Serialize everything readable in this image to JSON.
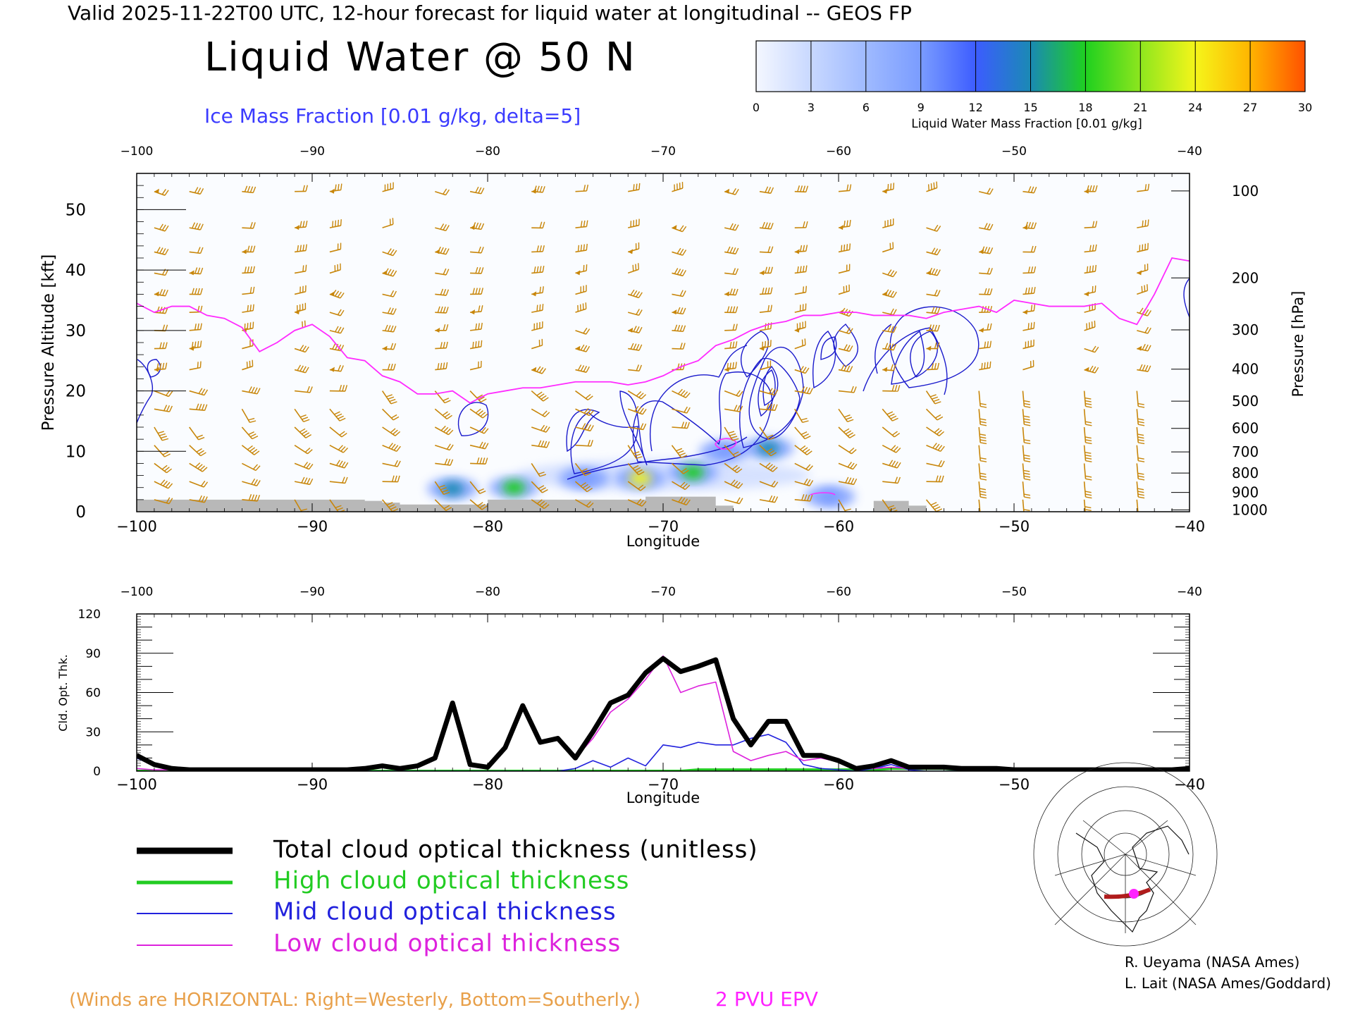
{
  "header": {
    "valid_line": "Valid 2025-11-22T00 UTC, 12-hour forecast for liquid water at longitudinal -- GEOS FP",
    "main_title": "Liquid Water @ 50 N",
    "subtitle": "Ice Mass Fraction [0.01 g/kg, delta=5]"
  },
  "colorbar": {
    "ticks": [
      "0",
      "3",
      "6",
      "9",
      "12",
      "15",
      "18",
      "21",
      "24",
      "27",
      "30"
    ],
    "label": "Liquid Water Mass Fraction [0.01 g/kg]",
    "colors": [
      "#f4f7ff",
      "#c8d8ff",
      "#9fbaff",
      "#7a9cff",
      "#3c5cff",
      "#1a8ab4",
      "#1fd01f",
      "#8ee61e",
      "#f5f51a",
      "#ffb400",
      "#ff5000"
    ]
  },
  "colors": {
    "tropopause": "#ff2bff",
    "ice_contour": "#1a1acc",
    "wind_barb": "#c8860a",
    "terrain": "#b8b8b8",
    "high_cloud": "#22cc22",
    "mid_cloud": "#2222dd",
    "low_cloud": "#dd22dd",
    "total_cloud": "#000000",
    "winds_note": "#e8a04a",
    "pvu": "#ff22ff",
    "subtitle": "#3a3aff"
  },
  "chart_data": [
    {
      "type": "heatmap",
      "title": "Liquid Water @ 50 N",
      "xlabel": "Longitude",
      "ylabel": "Pressure Altitude [kft]",
      "ylabel_right": "Pressure [hPa]",
      "xlim": [
        -100,
        -40
      ],
      "ylim": [
        0,
        56
      ],
      "x_ticks": [
        "-100",
        "-90",
        "-80",
        "-70",
        "-60",
        "-50",
        "-40"
      ],
      "y_ticks": [
        "0",
        "10",
        "20",
        "30",
        "40",
        "50"
      ],
      "pressure_ticks": [
        {
          "label": "100",
          "alt_kft": 53.1
        },
        {
          "label": "200",
          "alt_kft": 38.7
        },
        {
          "label": "300",
          "alt_kft": 30.1
        },
        {
          "label": "400",
          "alt_kft": 23.6
        },
        {
          "label": "500",
          "alt_kft": 18.3
        },
        {
          "label": "600",
          "alt_kft": 13.8
        },
        {
          "label": "700",
          "alt_kft": 9.9
        },
        {
          "label": "800",
          "alt_kft": 6.4
        },
        {
          "label": "900",
          "alt_kft": 3.2
        },
        {
          "label": "1000",
          "alt_kft": 0.3
        }
      ],
      "liquid_water_blobs": [
        {
          "lon": -82.0,
          "alt": 3.8,
          "value": 14
        },
        {
          "lon": -78.5,
          "alt": 4.0,
          "value": 17
        },
        {
          "lon": -74.5,
          "alt": 5.5,
          "value": 9
        },
        {
          "lon": -71.3,
          "alt": 5.5,
          "value": 24
        },
        {
          "lon": -68.3,
          "alt": 6.5,
          "value": 17
        },
        {
          "lon": -64.0,
          "alt": 10.5,
          "value": 15
        },
        {
          "lon": -66.5,
          "alt": 10.0,
          "value": 8
        },
        {
          "lon": -60.5,
          "alt": 2.5,
          "value": 8
        }
      ],
      "tropopause_2pvu": {
        "lon": [
          -100,
          -99,
          -98,
          -97,
          -96,
          -95,
          -94,
          -93,
          -92,
          -91,
          -90,
          -89,
          -88,
          -87,
          -86,
          -85,
          -84,
          -83,
          -82,
          -81,
          -80,
          -79,
          -78,
          -77,
          -76,
          -75,
          -74,
          -73,
          -72,
          -71,
          -70,
          -69,
          -68,
          -67,
          -66,
          -65,
          -64,
          -63,
          -62,
          -61,
          -60,
          -59,
          -58,
          -57,
          -56,
          -55,
          -54,
          -53,
          -52,
          -51,
          -50,
          -49,
          -48,
          -47,
          -46,
          -45,
          -44,
          -43,
          -42,
          -41,
          -40
        ],
        "alt": [
          34.5,
          33.0,
          34.0,
          34.0,
          32.5,
          32.0,
          30.5,
          26.5,
          28.0,
          30.0,
          31.0,
          29.0,
          25.5,
          25.0,
          22.5,
          21.5,
          19.5,
          19.5,
          20.0,
          18.0,
          19.5,
          20.0,
          20.5,
          20.5,
          21.0,
          21.5,
          21.5,
          21.5,
          21.0,
          21.5,
          22.5,
          24.0,
          25.0,
          27.5,
          28.5,
          30.0,
          31.0,
          31.5,
          32.5,
          32.5,
          33.0,
          33.0,
          32.5,
          32.5,
          32.5,
          32.0,
          33.0,
          33.5,
          34.0,
          33.0,
          35.0,
          34.5,
          34.0,
          34.0,
          34.0,
          34.5,
          32.0,
          31.0,
          36.0,
          42.0,
          41.5
        ]
      },
      "terrain_alt_kft": [
        2.0,
        2.0,
        2.0,
        2.0,
        2.0,
        2.0,
        2.0,
        2.0,
        2.0,
        2.0,
        2.0,
        2.0,
        2.0,
        1.8,
        1.5,
        1.2,
        1.2,
        1.2,
        1.2,
        1.2,
        2.0,
        2.0,
        2.0,
        2.0,
        2.0,
        2.0,
        2.0,
        2.0,
        2.0,
        2.5,
        2.5,
        2.5,
        2.5,
        1.0,
        0.0,
        0.0,
        0.0,
        0.0,
        0.0,
        0.0,
        0.0,
        0.0,
        1.8,
        1.8,
        1.0,
        0.0,
        0.0,
        0.0,
        0.0,
        0.0,
        0.0,
        0.0,
        0.0,
        0.0,
        0.0,
        0.0,
        0.0,
        0.0,
        0.0,
        0.0,
        0.0
      ]
    },
    {
      "type": "line",
      "xlabel": "Longitude",
      "ylabel": "Cld. Opt. Thk.",
      "xlim": [
        -100,
        -40
      ],
      "ylim": [
        0,
        120
      ],
      "x_ticks": [
        "-100",
        "-90",
        "-80",
        "-70",
        "-60",
        "-50",
        "-40"
      ],
      "y_ticks": [
        "0",
        "30",
        "60",
        "90",
        "120"
      ],
      "x": [
        -100,
        -99,
        -98,
        -97,
        -96,
        -95,
        -94,
        -93,
        -92,
        -91,
        -90,
        -89,
        -88,
        -87,
        -86,
        -85,
        -84,
        -83,
        -82,
        -81,
        -80,
        -79,
        -78,
        -77,
        -76,
        -75,
        -74,
        -73,
        -72,
        -71,
        -70,
        -69,
        -68,
        -67,
        -66,
        -65,
        -64,
        -63,
        -62,
        -61,
        -60,
        -59,
        -58,
        -57,
        -56,
        -55,
        -54,
        -53,
        -52,
        -51,
        -50,
        -49,
        -48,
        -47,
        -46,
        -45,
        -44,
        -43,
        -42,
        -41,
        -40
      ],
      "series": [
        {
          "name": "Total cloud optical thickness (unitless)",
          "values": [
            12,
            5,
            2,
            1,
            1,
            1,
            1,
            1,
            1,
            1,
            1,
            1,
            1,
            2,
            4,
            2,
            4,
            10,
            52,
            5,
            3,
            18,
            50,
            22,
            25,
            10,
            30,
            52,
            58,
            75,
            86,
            76,
            80,
            85,
            40,
            20,
            38,
            38,
            12,
            12,
            8,
            2,
            4,
            8,
            3,
            3,
            3,
            2,
            2,
            2,
            1,
            1,
            1,
            1,
            1,
            1,
            1,
            1,
            1,
            1,
            2
          ]
        },
        {
          "name": "High cloud optical thickness",
          "values": [
            0,
            0,
            0,
            0,
            0,
            0,
            0,
            0,
            0,
            0,
            0,
            0,
            0,
            0,
            0,
            0,
            0,
            0,
            0,
            0,
            0,
            0,
            0,
            0,
            0,
            0,
            0,
            0,
            0,
            0,
            0,
            0,
            1,
            1,
            1,
            1,
            1,
            1,
            1,
            1,
            1,
            1,
            1,
            2,
            2,
            2,
            2,
            1,
            1,
            1,
            1,
            1,
            1,
            1,
            1,
            1,
            1,
            1,
            1,
            1,
            1
          ]
        },
        {
          "name": "Mid cloud optical thickness",
          "values": [
            10,
            4,
            1,
            0,
            0,
            0,
            0,
            0,
            0,
            0,
            0,
            0,
            0,
            0,
            0,
            0,
            0,
            0,
            0,
            0,
            0,
            0,
            0,
            0,
            0,
            2,
            8,
            3,
            10,
            4,
            20,
            18,
            22,
            20,
            20,
            25,
            28,
            22,
            5,
            2,
            1,
            0,
            2,
            5,
            1,
            0,
            0,
            0,
            0,
            0,
            0,
            0,
            0,
            0,
            0,
            0,
            0,
            0,
            0,
            0,
            0
          ]
        },
        {
          "name": "Low cloud optical thickness",
          "values": [
            2,
            1,
            1,
            1,
            1,
            1,
            1,
            1,
            1,
            1,
            1,
            1,
            1,
            2,
            4,
            2,
            4,
            10,
            50,
            5,
            3,
            18,
            50,
            22,
            25,
            10,
            25,
            45,
            55,
            70,
            88,
            60,
            65,
            68,
            15,
            8,
            12,
            15,
            8,
            10,
            7,
            2,
            2,
            3,
            2,
            2,
            2,
            1,
            1,
            1,
            0,
            0,
            0,
            0,
            0,
            0,
            0,
            0,
            0,
            0,
            0
          ]
        }
      ]
    }
  ],
  "legend": {
    "total": "Total cloud optical thickness (unitless)",
    "high": "High cloud optical thickness",
    "mid": "Mid cloud optical thickness",
    "low": "Low cloud optical thickness"
  },
  "footer": {
    "winds_note": "(Winds are HORIZONTAL: Right=Westerly, Bottom=Southerly.)",
    "pvu": "2 PVU EPV",
    "credit1": "R. Ueyama (NASA Ames)",
    "credit2": "L. Lait (NASA Ames/Goddard)"
  }
}
